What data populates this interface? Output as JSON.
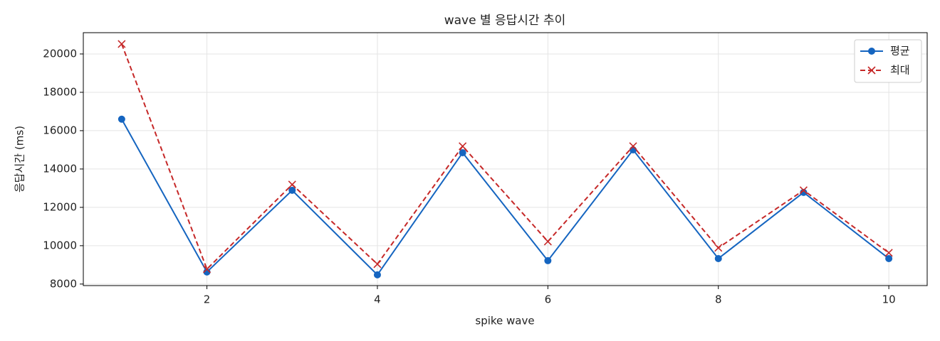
{
  "chart_data": {
    "type": "line",
    "title": "wave 별 응답시간 추이",
    "x_label": "spike wave",
    "y_label": "응답시간 (ms)",
    "x": [
      1,
      2,
      3,
      4,
      5,
      6,
      7,
      8,
      9,
      10
    ],
    "series": [
      {
        "name": "평균",
        "color": "#1565c0",
        "marker": "circle",
        "linestyle": "solid",
        "values": [
          16600,
          8630,
          12890,
          8480,
          14850,
          9220,
          15000,
          9330,
          12780,
          9330
        ]
      },
      {
        "name": "최대",
        "color": "#c62828",
        "marker": "x",
        "linestyle": "dashed",
        "values": [
          20520,
          8780,
          13190,
          9040,
          15190,
          10220,
          15190,
          9890,
          12890,
          9630
        ]
      }
    ],
    "xlim": [
      0.55,
      10.45
    ],
    "xticks": [
      2,
      4,
      6,
      8,
      10
    ],
    "ylim": [
      7920,
      21110
    ],
    "yticks": [
      8000,
      10000,
      12000,
      14000,
      16000,
      18000,
      20000
    ],
    "grid": true,
    "legend": "upper right"
  }
}
